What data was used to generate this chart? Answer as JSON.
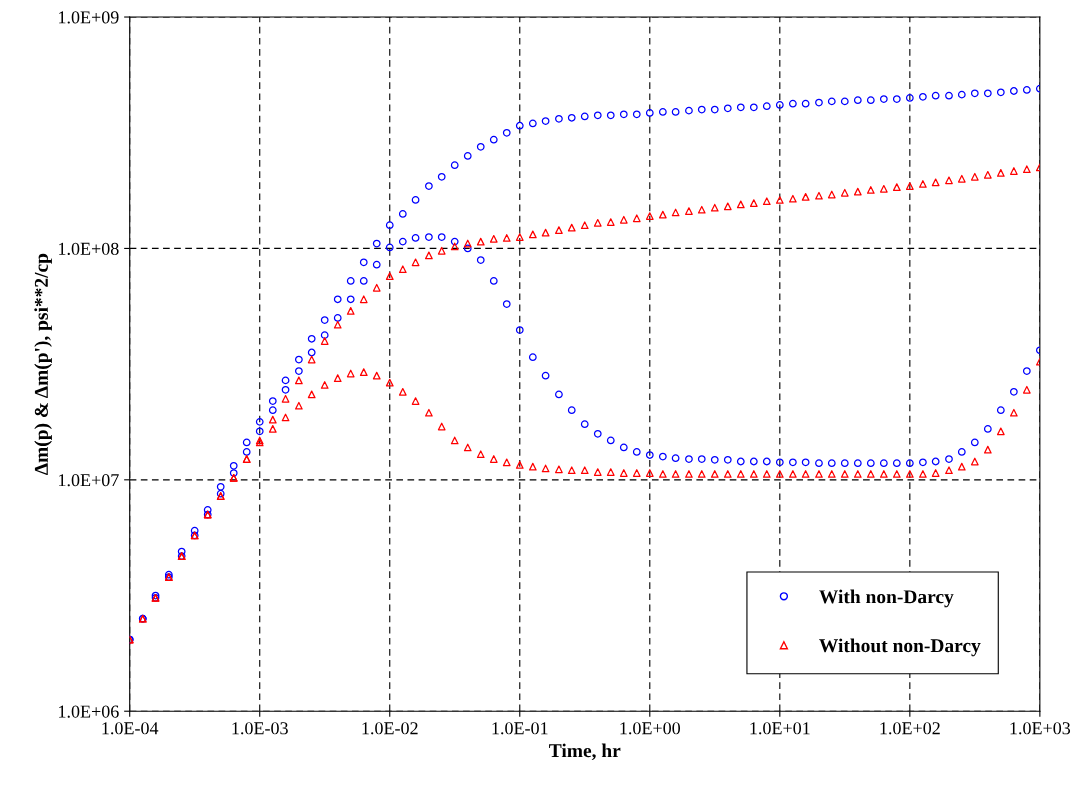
{
  "chart_data": {
    "type": "scatter",
    "xlabel": "Time, hr",
    "ylabel": "Δm(p) & Δm(p'), psi**2/cp",
    "log": "xy",
    "grid": true,
    "legend": "bottom right",
    "xlim": [
      0.0001,
      1000
    ],
    "ylim": [
      1000000,
      1000000000
    ],
    "xticks": [
      {
        "value": 0.0001,
        "label": "1.0E-04"
      },
      {
        "value": 0.001,
        "label": "1.0E-03"
      },
      {
        "value": 0.01,
        "label": "1.0E-02"
      },
      {
        "value": 0.1,
        "label": "1.0E-01"
      },
      {
        "value": 1,
        "label": "1.0E+00"
      },
      {
        "value": 10,
        "label": "1.0E+01"
      },
      {
        "value": 100,
        "label": "1.0E+02"
      },
      {
        "value": 1000,
        "label": "1.0E+03"
      }
    ],
    "yticks": [
      {
        "value": 1000000,
        "label": "1.0E+06"
      },
      {
        "value": 10000000,
        "label": "1.0E+07"
      },
      {
        "value": 100000000,
        "label": "1.0E+08"
      },
      {
        "value": 1000000000,
        "label": "1.0E+09"
      }
    ],
    "x": [
      0.0001,
      0.000126,
      0.000158,
      0.0002,
      0.000251,
      0.000316,
      0.000398,
      0.000501,
      0.000631,
      0.000794,
      0.001,
      0.00126,
      0.00158,
      0.002,
      0.00251,
      0.00316,
      0.00398,
      0.00501,
      0.00631,
      0.00794,
      0.01,
      0.0126,
      0.0158,
      0.02,
      0.0251,
      0.0316,
      0.0398,
      0.0501,
      0.0631,
      0.0794,
      0.1,
      0.126,
      0.158,
      0.2,
      0.251,
      0.316,
      0.398,
      0.501,
      0.631,
      0.794,
      1,
      1.26,
      1.58,
      2,
      2.51,
      3.16,
      3.98,
      5.01,
      6.31,
      7.94,
      10,
      12.6,
      15.8,
      20,
      25.1,
      31.6,
      39.8,
      50.1,
      63.1,
      79.4,
      100,
      126,
      158,
      200,
      251,
      316,
      398,
      501,
      631,
      794,
      1000
    ],
    "series": [
      {
        "name": "With non-Darcy",
        "color": "#0000ff",
        "marker": "circle",
        "values": [
          2040000.0,
          2510000.0,
          3160000.0,
          3890000.0,
          4900000.0,
          6030000.0,
          7410000.0,
          9330000.0,
          11500000.0,
          14500000.0,
          17800000.0,
          21900000.0,
          26900000.0,
          33100000.0,
          40700000.0,
          49000000.0,
          60300000.0,
          72400000.0,
          87100000.0,
          105000000.0,
          126000000.0,
          141000000.0,
          162000000.0,
          186000000.0,
          204000000.0,
          229000000.0,
          251000000.0,
          275000000.0,
          295000000.0,
          316000000.0,
          339000000.0,
          347000000.0,
          355000000.0,
          363000000.0,
          367000000.0,
          372000000.0,
          376000000.0,
          376000000.0,
          380000000.0,
          380000000.0,
          385000000.0,
          389000000.0,
          389000000.0,
          394000000.0,
          398000000.0,
          398000000.0,
          403000000.0,
          407000000.0,
          407000000.0,
          412000000.0,
          417000000.0,
          422000000.0,
          422000000.0,
          427000000.0,
          432000000.0,
          432000000.0,
          437000000.0,
          437000000.0,
          442000000.0,
          442000000.0,
          447000000.0,
          452000000.0,
          457000000.0,
          457000000.0,
          462000000.0,
          468000000.0,
          468000000.0,
          473000000.0,
          479000000.0,
          484000000.0,
          490000000.0
        ]
      },
      {
        "color": "#0000ff",
        "marker": "circle",
        "values": [
          2040000.0,
          2510000.0,
          3090000.0,
          3800000.0,
          4680000.0,
          5750000.0,
          7080000.0,
          8710000.0,
          10700000.0,
          13200000.0,
          16200000.0,
          20000000.0,
          24500000.0,
          29500000.0,
          35500000.0,
          42200000.0,
          50100000.0,
          60300000.0,
          72400000.0,
          85100000.0,
          101000000.0,
          107000000.0,
          111000000.0,
          112000000.0,
          112000000.0,
          107000000.0,
          100000000.0,
          89100000.0,
          72400000.0,
          57500000.0,
          44400000.0,
          33900000.0,
          28200000.0,
          23400000.0,
          20000000.0,
          17400000.0,
          15800000.0,
          14800000.0,
          13800000.0,
          13200000.0,
          12800000.0,
          12600000.0,
          12400000.0,
          12300000.0,
          12300000.0,
          12200000.0,
          12200000.0,
          12000000.0,
          12000000.0,
          12000000.0,
          11900000.0,
          11900000.0,
          11900000.0,
          11800000.0,
          11800000.0,
          11800000.0,
          11800000.0,
          11800000.0,
          11800000.0,
          11800000.0,
          11800000.0,
          11900000.0,
          12000000.0,
          12300000.0,
          13200000.0,
          14500000.0,
          16600000.0,
          20000000.0,
          24000000.0,
          29500000.0,
          36300000.0
        ]
      },
      {
        "name": "Without non-Darcy",
        "color": "#ff0000",
        "marker": "triangle",
        "values": [
          2040000.0,
          2510000.0,
          3090000.0,
          3800000.0,
          4680000.0,
          5750000.0,
          7080000.0,
          8510000.0,
          10200000.0,
          12300000.0,
          14800000.0,
          18200000.0,
          22400000.0,
          26900000.0,
          33100000.0,
          39800000.0,
          46800000.0,
          53700000.0,
          60300000.0,
          67600000.0,
          75900000.0,
          81300000.0,
          87100000.0,
          93300000.0,
          97700000.0,
          102000000.0,
          105000000.0,
          107000000.0,
          110000000.0,
          111000000.0,
          112000000.0,
          115000000.0,
          117000000.0,
          120000000.0,
          123000000.0,
          126000000.0,
          129000000.0,
          130000000.0,
          133000000.0,
          135000000.0,
          138000000.0,
          140000000.0,
          143000000.0,
          145000000.0,
          147000000.0,
          150000000.0,
          152000000.0,
          155000000.0,
          157000000.0,
          160000000.0,
          162000000.0,
          164000000.0,
          167000000.0,
          169000000.0,
          171000000.0,
          174000000.0,
          176000000.0,
          179000000.0,
          181000000.0,
          184000000.0,
          186000000.0,
          190000000.0,
          193000000.0,
          197000000.0,
          200000000.0,
          204000000.0,
          208000000.0,
          212000000.0,
          216000000.0,
          220000000.0,
          224000000.0
        ]
      },
      {
        "color": "#ff0000",
        "marker": "triangle",
        "values": [
          2040000.0,
          2510000.0,
          3090000.0,
          3800000.0,
          4680000.0,
          5750000.0,
          7080000.0,
          8510000.0,
          10200000.0,
          12300000.0,
          14500000.0,
          16600000.0,
          18600000.0,
          20900000.0,
          23400000.0,
          25700000.0,
          27500000.0,
          28800000.0,
          29200000.0,
          28200000.0,
          26300000.0,
          24000000.0,
          21900000.0,
          19500000.0,
          17000000.0,
          14800000.0,
          13800000.0,
          12900000.0,
          12300000.0,
          11900000.0,
          11600000.0,
          11400000.0,
          11200000.0,
          11100000.0,
          11000000.0,
          11000000.0,
          10800000.0,
          10800000.0,
          10700000.0,
          10700000.0,
          10700000.0,
          10600000.0,
          10600000.0,
          10600000.0,
          10600000.0,
          10600000.0,
          10600000.0,
          10600000.0,
          10600000.0,
          10600000.0,
          10600000.0,
          10600000.0,
          10600000.0,
          10600000.0,
          10600000.0,
          10600000.0,
          10600000.0,
          10600000.0,
          10600000.0,
          10600000.0,
          10600000.0,
          10600000.0,
          10700000.0,
          11000000.0,
          11400000.0,
          12000000.0,
          13500000.0,
          16200000.0,
          19500000.0,
          24500000.0,
          32400000.0
        ]
      }
    ]
  }
}
